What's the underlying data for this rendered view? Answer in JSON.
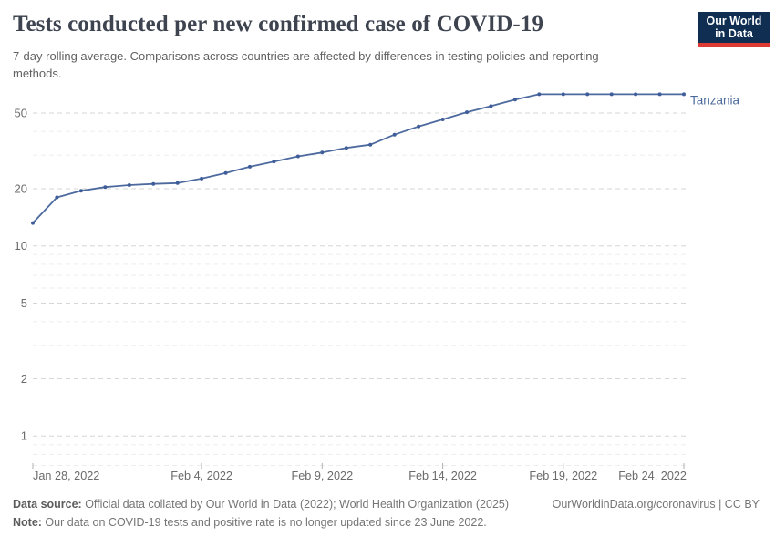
{
  "header": {
    "title": "Tests conducted per new confirmed case of COVID-19",
    "subtitle": "7-day rolling average. Comparisons across countries are affected by differences in testing policies and reporting methods.",
    "logo": {
      "line1": "Our World",
      "line2": "in Data"
    }
  },
  "chart_data": {
    "type": "line",
    "title": "Tests conducted per new confirmed case of COVID-19",
    "subtitle": "7-day rolling average. Comparisons across countries are affected by differences in testing policies and reporting methods.",
    "y_scale": "log",
    "grid": true,
    "legend_position": "label-at-line-end",
    "ylim": [
      0.68,
      65
    ],
    "y_major_ticks": [
      "1",
      "2",
      "5",
      "10",
      "20",
      "50"
    ],
    "y_minor_ticks": [
      0.7,
      0.8,
      0.9,
      3,
      4,
      6,
      7,
      8,
      9,
      30,
      40,
      60
    ],
    "x": [
      "2022-01-28",
      "2022-01-29",
      "2022-01-30",
      "2022-01-31",
      "2022-02-01",
      "2022-02-02",
      "2022-02-03",
      "2022-02-04",
      "2022-02-05",
      "2022-02-06",
      "2022-02-07",
      "2022-02-08",
      "2022-02-09",
      "2022-02-10",
      "2022-02-11",
      "2022-02-12",
      "2022-02-13",
      "2022-02-14",
      "2022-02-15",
      "2022-02-16",
      "2022-02-17",
      "2022-02-18",
      "2022-02-19",
      "2022-02-20",
      "2022-02-21",
      "2022-02-22",
      "2022-02-23",
      "2022-02-24"
    ],
    "x_ticks": [
      {
        "index": 0,
        "label": "Jan 28, 2022"
      },
      {
        "index": 7,
        "label": "Feb 4, 2022"
      },
      {
        "index": 12,
        "label": "Feb 9, 2022"
      },
      {
        "index": 17,
        "label": "Feb 14, 2022"
      },
      {
        "index": 22,
        "label": "Feb 19, 2022"
      },
      {
        "index": 27,
        "label": "Feb 24, 2022"
      }
    ],
    "series": [
      {
        "name": "Tanzania",
        "values": [
          13.2,
          18.0,
          19.5,
          20.4,
          20.9,
          21.2,
          21.4,
          22.6,
          24.2,
          26.1,
          27.8,
          29.6,
          31.0,
          32.8,
          34.1,
          38.5,
          42.5,
          46.3,
          50.5,
          54.4,
          58.8,
          62.8,
          62.8,
          62.8,
          62.8,
          62.8,
          62.8,
          62.8
        ],
        "color": "#4d6a9f",
        "marker_color": "#3f5d99",
        "label_color": "#4c6a9c"
      }
    ]
  },
  "footer": {
    "source_label": "Data source:",
    "source_text": " Official data collated by Our World in Data (2022); World Health Organization (2025)",
    "link_text": "OurWorldinData.org/coronavirus | CC BY",
    "note_label": "Note:",
    "note_text": " Our data on COVID-19 tests and positive rate is no longer updated since 23 June 2022."
  },
  "colors": {
    "title": "#3d4450",
    "subtitle": "#616161",
    "grid_major": "#d6d6d6",
    "grid_minor": "#ededed",
    "axis_label": "#6b6b6b",
    "tick_mark": "#b0b0b0",
    "line": "#4d6a9f",
    "marker": "#3f5d99",
    "entity_label": "#4c6a9c",
    "logo_bg": "#0f2e52",
    "logo_bar": "#dc3a33",
    "footer_text": "#757575"
  }
}
